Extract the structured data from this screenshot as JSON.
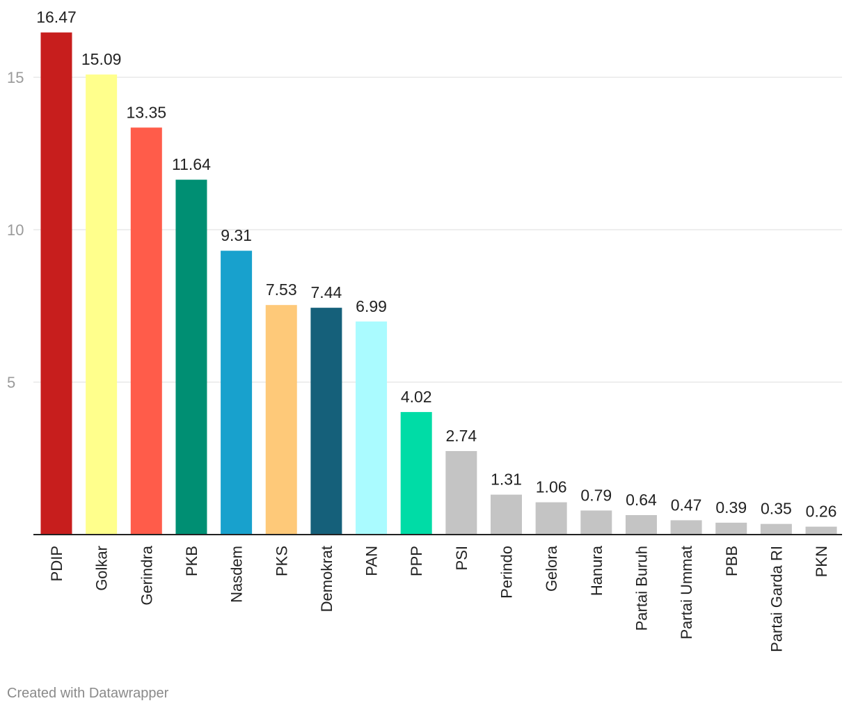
{
  "chart_data": {
    "type": "bar",
    "title": "",
    "xlabel": "",
    "ylabel": "",
    "ylim": [
      0,
      17
    ],
    "yticks": [
      5,
      10,
      15
    ],
    "grid": true,
    "categories": [
      "PDIP",
      "Golkar",
      "Gerindra",
      "PKB",
      "Nasdem",
      "PKS",
      "Demokrat",
      "PAN",
      "PPP",
      "PSI",
      "Perindo",
      "Gelora",
      "Hanura",
      "Partai Buruh",
      "Partai Ummat",
      "PBB",
      "Partai Garda RI",
      "PKN"
    ],
    "values": [
      16.47,
      15.09,
      13.35,
      11.64,
      9.31,
      7.53,
      7.44,
      6.99,
      4.02,
      2.74,
      1.31,
      1.06,
      0.79,
      0.64,
      0.47,
      0.39,
      0.35,
      0.26
    ],
    "value_labels": [
      "16.47",
      "15.09",
      "13.35",
      "11.64",
      "9.31",
      "7.53",
      "7.44",
      "6.99",
      "4.02",
      "2.74",
      "1.31",
      "1.06",
      "0.79",
      "0.64",
      "0.47",
      "0.39",
      "0.35",
      "0.26"
    ],
    "colors": [
      "#c71e1d",
      "#ffff8c",
      "#ff5c4a",
      "#008f73",
      "#18a1cd",
      "#fec979",
      "#15607a",
      "#aafbff",
      "#00dca6",
      "#c4c4c4",
      "#c4c4c4",
      "#c4c4c4",
      "#c4c4c4",
      "#c4c4c4",
      "#c4c4c4",
      "#c4c4c4",
      "#c4c4c4",
      "#c4c4c4"
    ]
  },
  "footer": {
    "credit": "Created with Datawrapper"
  }
}
